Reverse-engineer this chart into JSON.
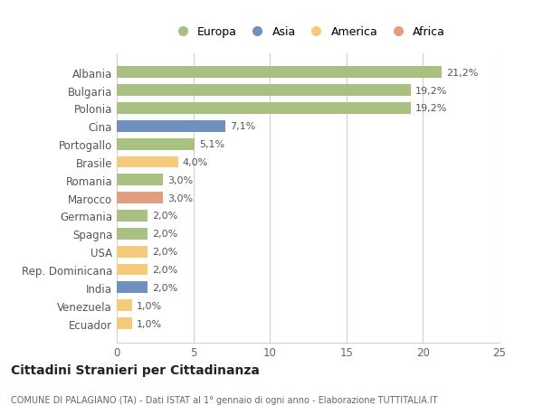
{
  "categories": [
    "Ecuador",
    "Venezuela",
    "India",
    "Rep. Dominicana",
    "USA",
    "Spagna",
    "Germania",
    "Marocco",
    "Romania",
    "Brasile",
    "Portogallo",
    "Cina",
    "Polonia",
    "Bulgaria",
    "Albania"
  ],
  "values": [
    1.0,
    1.0,
    2.0,
    2.0,
    2.0,
    2.0,
    2.0,
    3.0,
    3.0,
    4.0,
    5.1,
    7.1,
    19.2,
    19.2,
    21.2
  ],
  "labels": [
    "1,0%",
    "1,0%",
    "2,0%",
    "2,0%",
    "2,0%",
    "2,0%",
    "2,0%",
    "3,0%",
    "3,0%",
    "4,0%",
    "5,1%",
    "7,1%",
    "19,2%",
    "19,2%",
    "21,2%"
  ],
  "colors": [
    "#f5ca7a",
    "#f5ca7a",
    "#7090c0",
    "#f5ca7a",
    "#f5ca7a",
    "#a8c080",
    "#a8c080",
    "#e0a080",
    "#a8c080",
    "#f5ca7a",
    "#a8c080",
    "#7090c0",
    "#a8c080",
    "#a8c080",
    "#a8c080"
  ],
  "legend_labels": [
    "Europa",
    "Asia",
    "America",
    "Africa"
  ],
  "legend_colors": [
    "#a8c080",
    "#7090c0",
    "#f5ca7a",
    "#e0a080"
  ],
  "title": "Cittadini Stranieri per Cittadinanza",
  "subtitle": "COMUNE DI PALAGIANO (TA) - Dati ISTAT al 1° gennaio di ogni anno - Elaborazione TUTTITALIA.IT",
  "xlim": [
    0,
    25
  ],
  "xticks": [
    0,
    5,
    10,
    15,
    20,
    25
  ],
  "background_color": "#ffffff",
  "bar_height": 0.65,
  "grid_color": "#d0d0d0"
}
